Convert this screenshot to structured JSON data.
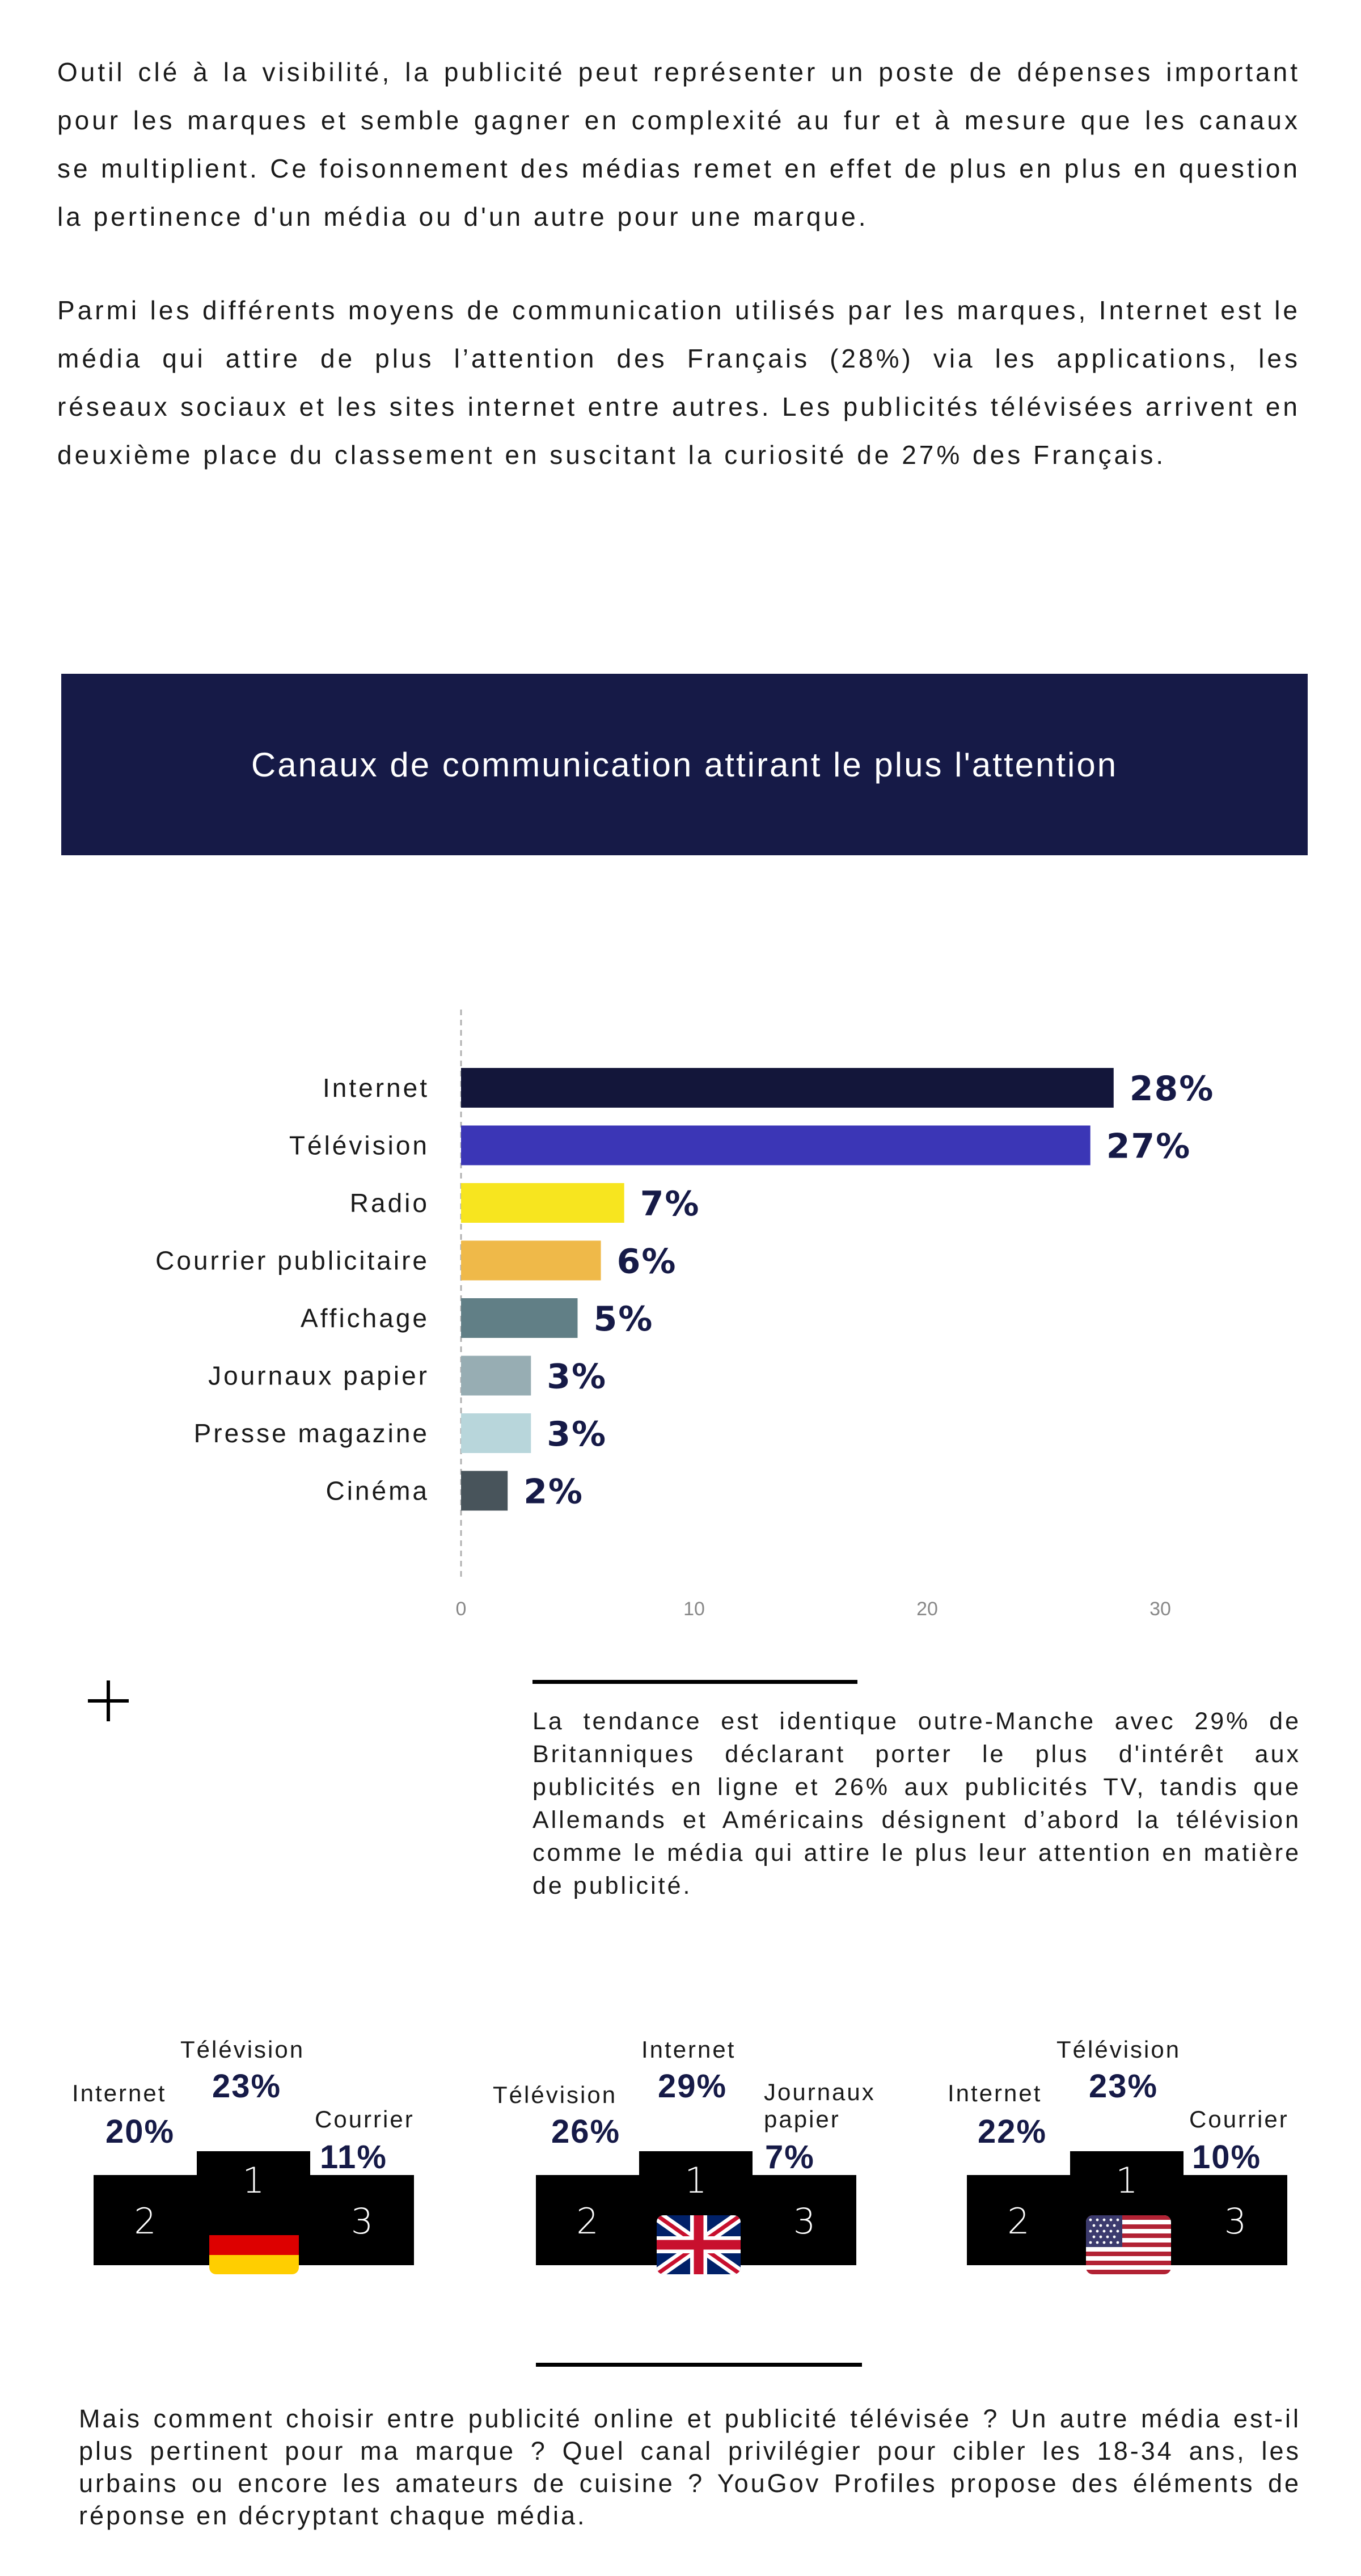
{
  "intro": {
    "paragraph1": "Outil clé à la visibilité, la publicité peut représenter un poste de dépenses important pour les marques et semble gagner en complexité au fur et à mesure que les canaux se multiplient. Ce foisonnement des médias remet en effet de plus en plus en question la pertinence d'un média ou d'un autre pour une marque.",
    "paragraph2": "Parmi les différents moyens de communication utilisés par les marques, Internet est le média qui attire de plus l’attention des Français (28%) via les applications, les réseaux sociaux et les sites internet entre autres. Les publicités télévisées arrivent en deuxième place du classement en suscitant la curiosité de 27% des Français."
  },
  "banner": {
    "title": "Canaux de communication attirant le plus l'attention"
  },
  "chart_data": {
    "type": "bar",
    "orientation": "horizontal",
    "title": "Canaux de communication attirant le plus l'attention",
    "categories": [
      "Internet",
      "Télévision",
      "Radio",
      "Courrier publicitaire",
      "Affichage",
      "Journaux papier",
      "Presse magazine",
      "Cinéma"
    ],
    "values": [
      28,
      27,
      7,
      6,
      5,
      3,
      3,
      2
    ],
    "value_labels": [
      "28%",
      "27%",
      "7%",
      "6%",
      "5%",
      "3%",
      "3%",
      "2%"
    ],
    "colors": [
      "#13163a",
      "#3b36b6",
      "#f7e51f",
      "#efb949",
      "#617f86",
      "#97adb3",
      "#b8d6db",
      "#48545b"
    ],
    "xticks": [
      0,
      10,
      20,
      30
    ],
    "xlim": [
      0,
      30
    ],
    "grid": false,
    "legend": "none"
  },
  "aside": {
    "icon": "plus-icon",
    "text": "La tendance est identique outre-Manche avec 29% de Britanniques déclarant porter le plus d'intérêt aux publicités en ligne et 26% aux publicités TV, tandis que Allemands et Américains désignent d’abord la télévision comme le média qui attire le plus leur attention en matière de publicité."
  },
  "podiums": [
    {
      "country": "germany",
      "first": {
        "label": "Télévision",
        "pct": "23%"
      },
      "second": {
        "label": "Internet",
        "pct": "20%"
      },
      "third": {
        "label": "Courrier",
        "pct": "11%"
      },
      "ranks": [
        "1",
        "2",
        "3"
      ],
      "flag_icon": "germany-flag-icon"
    },
    {
      "country": "uk",
      "first": {
        "label": "Internet",
        "pct": "29%"
      },
      "second": {
        "label": "Télévision",
        "pct": "26%"
      },
      "third": {
        "label": "Journaux papier",
        "pct": "7%"
      },
      "ranks": [
        "1",
        "2",
        "3"
      ],
      "flag_icon": "uk-flag-icon"
    },
    {
      "country": "usa",
      "first": {
        "label": "Télévision",
        "pct": "23%"
      },
      "second": {
        "label": "Internet",
        "pct": "22%"
      },
      "third": {
        "label": "Courrier",
        "pct": "10%"
      },
      "ranks": [
        "1",
        "2",
        "3"
      ],
      "flag_icon": "usa-flag-icon"
    }
  ],
  "closing": {
    "text": "Mais comment choisir entre publicité online et publicité télévisée ? Un autre média est-il plus pertinent pour ma marque ? Quel canal privilégier pour cibler les 18-34 ans, les urbains ou encore les amateurs de cuisine ? YouGov Profiles propose des éléments de réponse en décryptant chaque média."
  }
}
